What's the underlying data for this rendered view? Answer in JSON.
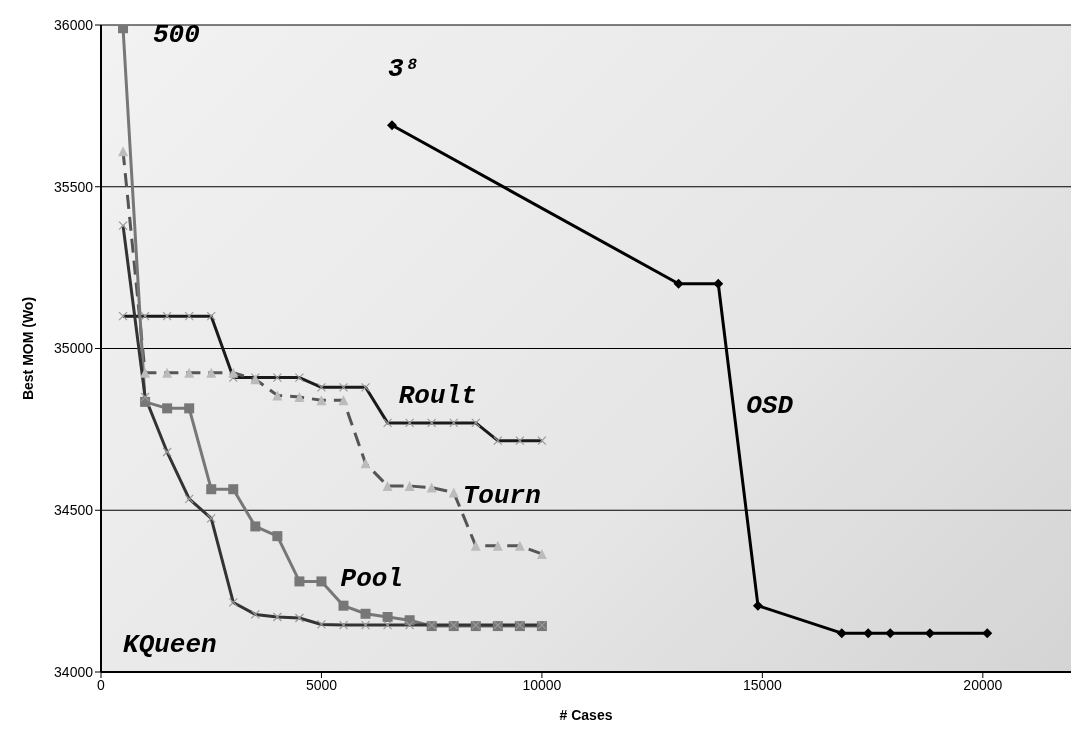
{
  "chart_data": {
    "type": "line",
    "xlabel": "# Cases",
    "ylabel": "Best MOM (Wo)",
    "xlim": [
      0,
      22000
    ],
    "xticks": [
      0,
      5000,
      10000,
      15000,
      20000
    ],
    "ylim": [
      34000,
      36000
    ],
    "yticks": [
      34000,
      34500,
      35000,
      35500,
      36000
    ],
    "grid": "y",
    "annotations": [
      "500",
      "3⁸"
    ],
    "series": [
      {
        "name": "Roult",
        "color": "#1a1a1a",
        "marker": "cross",
        "line_style": "solid",
        "x": [
          500,
          1000,
          1500,
          2000,
          2500,
          3000,
          3500,
          4000,
          4500,
          5000,
          5500,
          6000,
          6500,
          7000,
          7500,
          8000,
          8500,
          9000,
          9500,
          10000
        ],
        "values": [
          35100,
          35100,
          35100,
          35100,
          35100,
          34910,
          34910,
          34910,
          34910,
          34880,
          34880,
          34880,
          34770,
          34770,
          34770,
          34770,
          34770,
          34715,
          34715,
          34715
        ]
      },
      {
        "name": "Tourn",
        "color": "#555555",
        "marker": "triangle",
        "line_style": "dashed",
        "x": [
          500,
          1000,
          1500,
          2000,
          2500,
          3000,
          3500,
          4000,
          4500,
          5000,
          5500,
          6000,
          6500,
          7000,
          7500,
          8000,
          8500,
          9000,
          9500,
          10000
        ],
        "values": [
          35610,
          34925,
          34925,
          34925,
          34925,
          34925,
          34905,
          34855,
          34850,
          34840,
          34840,
          34645,
          34575,
          34575,
          34570,
          34555,
          34390,
          34390,
          34390,
          34365
        ]
      },
      {
        "name": "Pool",
        "color": "#777777",
        "marker": "square",
        "line_style": "solid",
        "x": [
          500,
          1000,
          1500,
          2000,
          2500,
          3000,
          3500,
          4000,
          4500,
          5000,
          5500,
          6000,
          6500,
          7000,
          7500,
          8000,
          8500,
          9000,
          9500,
          10000
        ],
        "values": [
          35990,
          34835,
          34815,
          34815,
          34565,
          34565,
          34450,
          34420,
          34280,
          34280,
          34205,
          34180,
          34170,
          34160,
          34142,
          34142,
          34142,
          34142,
          34142,
          34142
        ]
      },
      {
        "name": "KQueen",
        "color": "#333333",
        "marker": "cross",
        "line_style": "solid",
        "x": [
          500,
          1000,
          1500,
          2000,
          2500,
          3000,
          3500,
          4000,
          4500,
          5000,
          5500,
          6000,
          6500,
          7000,
          7500,
          8000,
          8500,
          9000,
          9500,
          10000
        ],
        "values": [
          35380,
          34850,
          34680,
          34535,
          34475,
          34215,
          34178,
          34170,
          34167,
          34147,
          34145,
          34145,
          34145,
          34145,
          34145,
          34145,
          34145,
          34145,
          34145,
          34145
        ]
      },
      {
        "name": "OSD",
        "color": "#000000",
        "marker": "diamond",
        "line_style": "solid",
        "x": [
          6600,
          13100,
          14000,
          14900,
          16800,
          17400,
          17900,
          18800,
          20100
        ],
        "values": [
          35690,
          35200,
          35200,
          34205,
          34120,
          34120,
          34120,
          34120,
          34120
        ]
      }
    ]
  }
}
